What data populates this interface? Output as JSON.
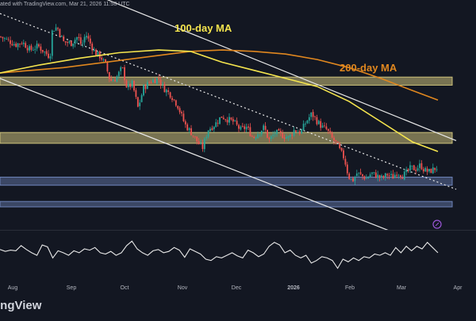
{
  "header": {
    "published": "ated with TradingView.com, Mar 21, 2026 11:58 UTC"
  },
  "brand": {
    "name": "ingView"
  },
  "colors": {
    "background": "#131722",
    "candle_up": "#26a69a",
    "candle_down": "#ef5350",
    "ma100": "#f5e54e",
    "ma200": "#e0871f",
    "resistance_zone": "#ccc07a",
    "support_zone": "#6d83b9",
    "channel_line": "#e8e8e8",
    "rsi_line": "#e8e8e8",
    "axis_text": "#b2b5be"
  },
  "chart_data": {
    "type": "candlestick",
    "title": "",
    "annotations": [
      {
        "text": "100-day MA",
        "color": "#f5e54e"
      },
      {
        "text": "200-day MA",
        "color": "#e0871f"
      }
    ],
    "x_axis": {
      "ticks": [
        "Aug",
        "Sep",
        "Oct",
        "Nov",
        "Dec",
        "2026",
        "Feb",
        "Mar",
        "Apr"
      ],
      "bold_tick": "2026"
    },
    "y_axis": {
      "visible": false
    },
    "price_path": [
      [
        0,
        0.83
      ],
      [
        10,
        0.8
      ],
      [
        20,
        0.77
      ],
      [
        28,
        0.79
      ],
      [
        38,
        0.73
      ],
      [
        48,
        0.76
      ],
      [
        55,
        0.72
      ],
      [
        63,
        0.68
      ],
      [
        66,
        0.88
      ],
      [
        72,
        0.9
      ],
      [
        80,
        0.79
      ],
      [
        90,
        0.78
      ],
      [
        98,
        0.83
      ],
      [
        103,
        0.76
      ],
      [
        108,
        0.85
      ],
      [
        112,
        0.8
      ],
      [
        117,
        0.74
      ],
      [
        120,
        0.71
      ],
      [
        127,
        0.68
      ],
      [
        133,
        0.62
      ],
      [
        139,
        0.5
      ],
      [
        146,
        0.52
      ],
      [
        154,
        0.6
      ],
      [
        160,
        0.45
      ],
      [
        167,
        0.48
      ],
      [
        174,
        0.3
      ],
      [
        181,
        0.45
      ],
      [
        190,
        0.5
      ],
      [
        200,
        0.52
      ],
      [
        206,
        0.45
      ],
      [
        215,
        0.4
      ],
      [
        224,
        0.32
      ],
      [
        233,
        0.18
      ],
      [
        241,
        0.12
      ],
      [
        249,
        0.05
      ],
      [
        255,
        0.0
      ],
      [
        262,
        0.14
      ],
      [
        271,
        0.18
      ],
      [
        279,
        0.24
      ],
      [
        286,
        0.22
      ],
      [
        294,
        0.2
      ],
      [
        303,
        0.14
      ],
      [
        311,
        0.16
      ],
      [
        319,
        0.08
      ],
      [
        326,
        0.12
      ],
      [
        333,
        0.16
      ],
      [
        339,
        0.06
      ],
      [
        347,
        0.12
      ],
      [
        356,
        0.1
      ],
      [
        364,
        0.08
      ],
      [
        371,
        0.14
      ],
      [
        379,
        0.12
      ],
      [
        386,
        0.2
      ],
      [
        393,
        0.26
      ],
      [
        400,
        0.2
      ],
      [
        406,
        0.16
      ],
      [
        412,
        0.14
      ],
      [
        418,
        0.08
      ],
      [
        424,
        0.04
      ],
      [
        429,
        -0.02
      ],
      [
        434,
        -0.07
      ],
      [
        439,
        -0.2
      ],
      [
        444,
        -0.24
      ],
      [
        450,
        -0.18
      ],
      [
        456,
        -0.2
      ],
      [
        462,
        -0.22
      ],
      [
        468,
        -0.18
      ],
      [
        475,
        -0.2
      ],
      [
        482,
        -0.22
      ],
      [
        488,
        -0.19
      ],
      [
        495,
        -0.21
      ],
      [
        501,
        -0.17
      ],
      [
        507,
        -0.2
      ],
      [
        512,
        -0.18
      ],
      [
        518,
        -0.14
      ],
      [
        524,
        -0.15
      ],
      [
        530,
        -0.12
      ],
      [
        535,
        -0.16
      ],
      [
        541,
        -0.17
      ],
      [
        547,
        -0.15
      ],
      [
        551,
        -0.14
      ]
    ],
    "ma100": [
      [
        0,
        0.56
      ],
      [
        50,
        0.62
      ],
      [
        100,
        0.67
      ],
      [
        150,
        0.71
      ],
      [
        200,
        0.73
      ],
      [
        240,
        0.72
      ],
      [
        280,
        0.64
      ],
      [
        320,
        0.58
      ],
      [
        360,
        0.52
      ],
      [
        400,
        0.46
      ],
      [
        440,
        0.35
      ],
      [
        480,
        0.2
      ],
      [
        520,
        0.05
      ],
      [
        552,
        -0.02
      ]
    ],
    "ma200": [
      [
        0,
        0.56
      ],
      [
        40,
        0.58
      ],
      [
        80,
        0.6
      ],
      [
        120,
        0.63
      ],
      [
        160,
        0.66
      ],
      [
        200,
        0.69
      ],
      [
        240,
        0.72
      ],
      [
        280,
        0.73
      ],
      [
        320,
        0.72
      ],
      [
        360,
        0.7
      ],
      [
        400,
        0.66
      ],
      [
        440,
        0.6
      ],
      [
        480,
        0.52
      ],
      [
        520,
        0.43
      ],
      [
        552,
        0.36
      ]
    ],
    "zones": [
      {
        "kind": "resistance",
        "low": 0.47,
        "high": 0.53
      },
      {
        "kind": "resistance",
        "low": 0.04,
        "high": 0.12
      },
      {
        "kind": "support",
        "low": -0.27,
        "high": -0.21
      },
      {
        "kind": "support",
        "low": -0.43,
        "high": -0.39
      }
    ],
    "channel": [
      {
        "style": "solid",
        "from": [
          115,
          1.15
        ],
        "to": [
          575,
          0.06
        ]
      },
      {
        "style": "dotted",
        "from": [
          0,
          1.0
        ],
        "to": [
          575,
          -0.3
        ]
      },
      {
        "style": "solid",
        "from": [
          0,
          0.52
        ],
        "to": [
          575,
          -0.8
        ]
      }
    ],
    "rsi": [
      57,
      54,
      56,
      55,
      63,
      57,
      52,
      48,
      64,
      61,
      44,
      55,
      52,
      48,
      55,
      52,
      58,
      56,
      60,
      52,
      50,
      54,
      48,
      52,
      63,
      70,
      58,
      52,
      48,
      55,
      57,
      52,
      54,
      60,
      56,
      45,
      58,
      54,
      50,
      42,
      40,
      46,
      44,
      48,
      52,
      47,
      44,
      56,
      52,
      46,
      50,
      62,
      68,
      64,
      52,
      56,
      48,
      44,
      48,
      36,
      40,
      46,
      44,
      40,
      28,
      42,
      38,
      44,
      40,
      46,
      44,
      50,
      48,
      52,
      48,
      60,
      52,
      62,
      55,
      62,
      58,
      68,
      60,
      52
    ],
    "rsi_range": [
      0,
      100
    ]
  }
}
